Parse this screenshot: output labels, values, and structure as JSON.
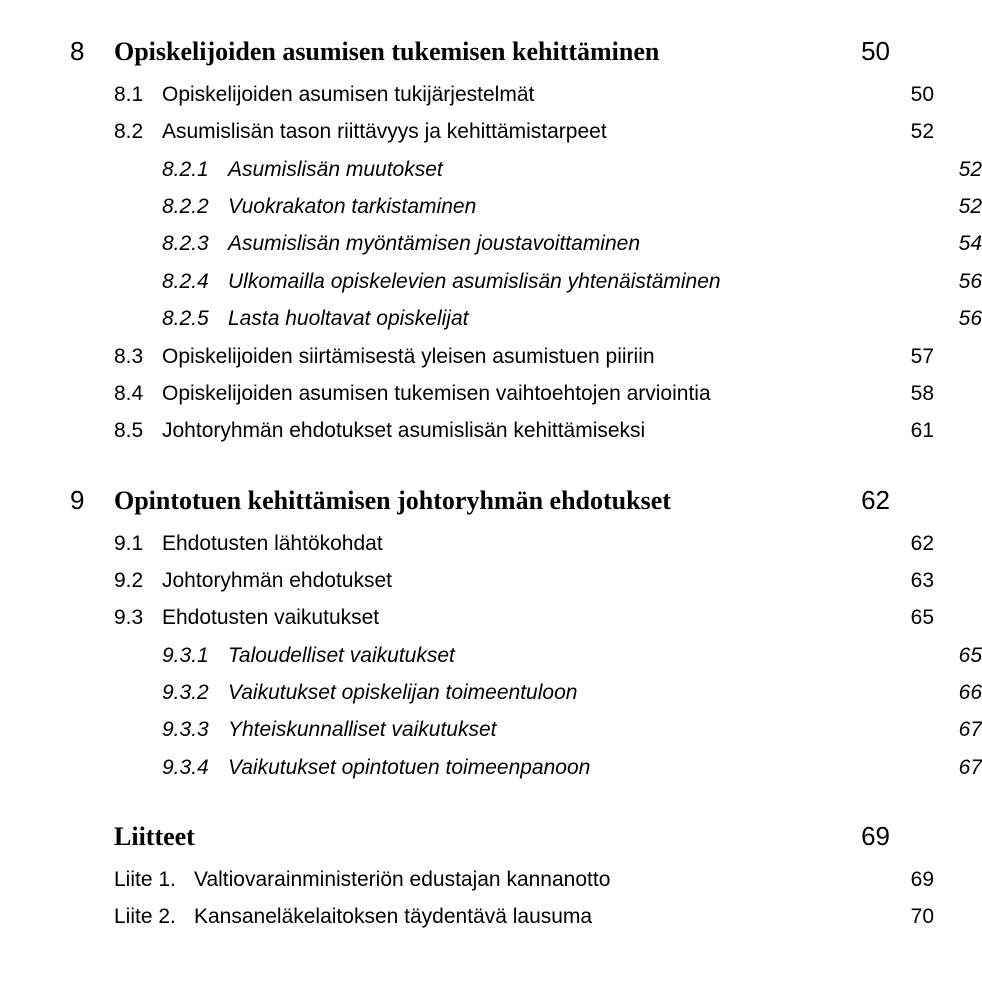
{
  "chapter8": {
    "num": "8",
    "title": "Opiskelijoiden asumisen tukemisen kehittäminen",
    "page": "50",
    "items": [
      {
        "num": "8.1",
        "title": "Opiskelijoiden asumisen tukijärjestelmät",
        "page": "50"
      },
      {
        "num": "8.2",
        "title": "Asumislisän tason riittävyys ja kehittämistarpeet",
        "page": "52",
        "items": [
          {
            "num": "8.2.1",
            "title": "Asumislisän muutokset",
            "page": "52"
          },
          {
            "num": "8.2.2",
            "title": "Vuokrakaton tarkistaminen",
            "page": "52"
          },
          {
            "num": "8.2.3",
            "title": "Asumislisän myöntämisen joustavoittaminen",
            "page": "54"
          },
          {
            "num": "8.2.4",
            "title": "Ulkomailla opiskelevien asumislisän yhtenäistäminen",
            "page": "56"
          },
          {
            "num": "8.2.5",
            "title": "Lasta huoltavat opiskelijat",
            "page": "56"
          }
        ]
      },
      {
        "num": "8.3",
        "title": "Opiskelijoiden siirtämisestä yleisen asumistuen piiriin",
        "page": "57"
      },
      {
        "num": "8.4",
        "title": "Opiskelijoiden asumisen tukemisen vaihtoehtojen arviointia",
        "page": "58"
      },
      {
        "num": "8.5",
        "title": "Johtoryhmän ehdotukset asumislisän kehittämiseksi",
        "page": "61"
      }
    ]
  },
  "chapter9": {
    "num": "9",
    "title": "Opintotuen kehittämisen johtoryhmän ehdotukset",
    "page": "62",
    "items": [
      {
        "num": "9.1",
        "title": "Ehdotusten lähtökohdat",
        "page": "62"
      },
      {
        "num": "9.2",
        "title": "Johtoryhmän ehdotukset",
        "page": "63"
      },
      {
        "num": "9.3",
        "title": "Ehdotusten vaikutukset",
        "page": "65",
        "items": [
          {
            "num": "9.3.1",
            "title": "Taloudelliset vaikutukset",
            "page": "65"
          },
          {
            "num": "9.3.2",
            "title": "Vaikutukset opiskelijan toimeentuloon",
            "page": "66"
          },
          {
            "num": "9.3.3",
            "title": "Yhteiskunnalliset vaikutukset",
            "page": "67"
          },
          {
            "num": "9.3.4",
            "title": "Vaikutukset opintotuen toimeenpanoon",
            "page": "67"
          }
        ]
      }
    ]
  },
  "appendix": {
    "title": "Liitteet",
    "page": "69",
    "items": [
      {
        "num": "Liite 1.",
        "title": "Valtiovarainministeriön edustajan kannanotto",
        "page": "69"
      },
      {
        "num": "Liite 2.",
        "title": "Kansaneläkelaitoksen täydentävä lausuma",
        "page": "70"
      }
    ]
  }
}
